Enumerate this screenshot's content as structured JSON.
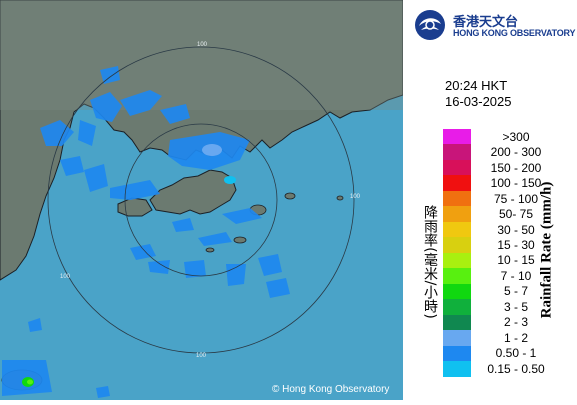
{
  "map": {
    "copyright": "© Hong Kong Observatory",
    "range_ring_labels": [
      "100",
      "100",
      "100",
      "100"
    ],
    "colors": {
      "sea": "#4aa3c8",
      "land": "#6b7a70",
      "coast": "#1b2026"
    }
  },
  "header": {
    "logo_text_zh": "香港天文台",
    "logo_text_en": "HONG KONG OBSERVATORY",
    "time": "20:24 HKT",
    "date": "16-03-2025"
  },
  "legend": {
    "title_en": "Rainfall Rate (mm/h)",
    "title_zh": "降雨率(毫米/小時)",
    "items": [
      {
        "label": ">300",
        "color": "#e81ce8"
      },
      {
        "label": "200 - 300",
        "color": "#c8157a"
      },
      {
        "label": "150 - 200",
        "color": "#d8105a"
      },
      {
        "label": "100 - 150",
        "color": "#f01010"
      },
      {
        "label": "75 - 100",
        "color": "#f07010"
      },
      {
        "label": "50- 75",
        "color": "#f0a010"
      },
      {
        "label": "30 - 50",
        "color": "#f0c810"
      },
      {
        "label": "15 - 30",
        "color": "#d8d010"
      },
      {
        "label": "10 - 15",
        "color": "#a8f010"
      },
      {
        "label": "7 - 10",
        "color": "#58f010"
      },
      {
        "label": "5 - 7",
        "color": "#10d810"
      },
      {
        "label": "3 - 5",
        "color": "#10b03c"
      },
      {
        "label": "2 - 3",
        "color": "#108850"
      },
      {
        "label": "1 - 2",
        "color": "#68a8f0"
      },
      {
        "label": "0.50 - 1",
        "color": "#1e88f0"
      },
      {
        "label": "0.15 - 0.50",
        "color": "#10c0f0"
      }
    ]
  }
}
